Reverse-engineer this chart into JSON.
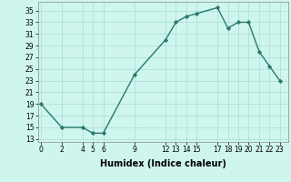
{
  "x": [
    0,
    2,
    4,
    5,
    6,
    9,
    12,
    13,
    14,
    15,
    17,
    18,
    19,
    20,
    21,
    22,
    23
  ],
  "y": [
    19,
    15,
    15,
    14,
    14,
    24,
    30,
    33,
    34,
    34.5,
    35.5,
    32,
    33,
    33,
    28,
    25.5,
    23
  ],
  "line_color": "#2a7a6a",
  "marker": "D",
  "markersize": 2.2,
  "linewidth": 1.0,
  "xlabel": "Humidex (Indice chaleur)",
  "ylim": [
    12.5,
    36.5
  ],
  "yticks": [
    13,
    15,
    17,
    19,
    21,
    23,
    25,
    27,
    29,
    31,
    33,
    35
  ],
  "xticks": [
    0,
    2,
    4,
    5,
    6,
    9,
    12,
    13,
    14,
    15,
    17,
    18,
    19,
    20,
    21,
    22,
    23
  ],
  "xlim": [
    -0.3,
    23.8
  ],
  "bg_color": "#cef5ee",
  "grid_color": "#aaddd5",
  "tick_fontsize": 5.5,
  "xlabel_fontsize": 7.0
}
